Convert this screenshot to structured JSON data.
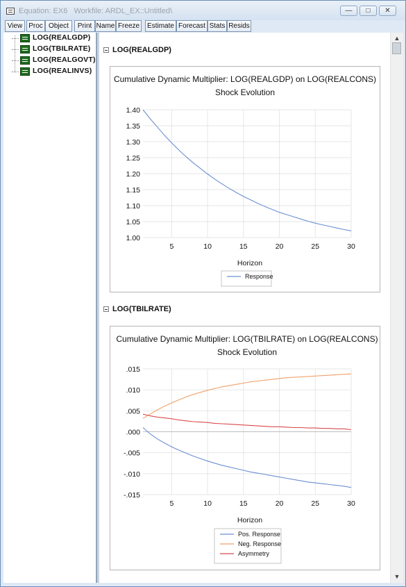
{
  "window": {
    "title": "Equation: EX6   Workfile: ARDL_EX::Untitled\\",
    "controls": [
      "minimize",
      "maximize",
      "close"
    ]
  },
  "toolbar": {
    "buttons": [
      "View",
      "Proc",
      "Object",
      "Print",
      "Name",
      "Freeze",
      "Estimate",
      "Forecast",
      "Stats",
      "Resids"
    ]
  },
  "tree": {
    "items": [
      "LOG(REALGDP)",
      "LOG(TBILRATE)",
      "LOG(REALGOVT)",
      "LOG(REALINVS)"
    ]
  },
  "sections": [
    {
      "header": "LOG(REALGDP)"
    },
    {
      "header": "LOG(TBILRATE)"
    }
  ],
  "chart_data": [
    {
      "type": "line",
      "title": "Cumulative Dynamic Multiplier: LOG(REALGDP) on LOG(REALCONS)",
      "subtitle": "Shock Evolution",
      "xlabel": "Horizon",
      "ylabel": "",
      "xlim": [
        1,
        30
      ],
      "ylim": [
        1.0,
        1.4
      ],
      "x_ticks": [
        5,
        10,
        15,
        20,
        25,
        30
      ],
      "y_ticks": [
        1.0,
        1.05,
        1.1,
        1.15,
        1.2,
        1.25,
        1.3,
        1.35,
        1.4
      ],
      "y_tick_labels": [
        "1.00",
        "1.05",
        "1.10",
        "1.15",
        "1.20",
        "1.25",
        "1.30",
        "1.35",
        "1.40"
      ],
      "grid": true,
      "legend": "bottom",
      "x": [
        1,
        2,
        3,
        4,
        5,
        6,
        7,
        8,
        9,
        10,
        11,
        12,
        13,
        14,
        15,
        16,
        17,
        18,
        19,
        20,
        21,
        22,
        23,
        24,
        25,
        26,
        27,
        28,
        29,
        30
      ],
      "series": [
        {
          "name": "Response",
          "color": "#6b8fd2",
          "values": [
            1.4,
            1.372,
            1.346,
            1.32,
            1.296,
            1.274,
            1.253,
            1.234,
            1.216,
            1.199,
            1.183,
            1.168,
            1.154,
            1.141,
            1.129,
            1.118,
            1.107,
            1.097,
            1.088,
            1.079,
            1.072,
            1.065,
            1.058,
            1.051,
            1.045,
            1.04,
            1.035,
            1.03,
            1.025,
            1.021
          ]
        }
      ]
    },
    {
      "type": "line",
      "title": "Cumulative Dynamic Multiplier: LOG(TBILRATE) on LOG(REALCONS)",
      "subtitle": "Shock Evolution",
      "xlabel": "Horizon",
      "ylabel": "",
      "xlim": [
        1,
        30
      ],
      "ylim": [
        -0.015,
        0.015
      ],
      "x_ticks": [
        5,
        10,
        15,
        20,
        25,
        30
      ],
      "y_ticks": [
        0.015,
        0.01,
        0.005,
        0,
        -0.005,
        -0.01,
        -0.015
      ],
      "y_tick_labels": [
        ".015",
        ".010",
        ".005",
        ".000",
        "-.005",
        "-.010",
        "-.015"
      ],
      "grid": true,
      "zero_line": true,
      "legend": "bottom",
      "x": [
        1,
        2,
        3,
        4,
        5,
        6,
        7,
        8,
        9,
        10,
        11,
        12,
        13,
        14,
        15,
        16,
        17,
        18,
        19,
        20,
        21,
        22,
        23,
        24,
        25,
        26,
        27,
        28,
        29,
        30
      ],
      "series": [
        {
          "name": "Pos. Response",
          "color": "#6b8fd2",
          "values": [
            0.001,
            -0.0005,
            -0.0017,
            -0.0027,
            -0.0036,
            -0.0044,
            -0.0051,
            -0.0058,
            -0.0064,
            -0.007,
            -0.0075,
            -0.008,
            -0.0084,
            -0.0088,
            -0.0092,
            -0.0096,
            -0.0099,
            -0.0102,
            -0.0105,
            -0.0108,
            -0.0111,
            -0.0114,
            -0.0117,
            -0.012,
            -0.0122,
            -0.0124,
            -0.0126,
            -0.0128,
            -0.013,
            -0.0133
          ]
        },
        {
          "name": "Neg. Response",
          "color": "#f0a06a",
          "values": [
            0.0032,
            0.0042,
            0.0052,
            0.0061,
            0.0069,
            0.0076,
            0.0083,
            0.0089,
            0.0094,
            0.0099,
            0.0103,
            0.0107,
            0.011,
            0.0113,
            0.0116,
            0.0119,
            0.0121,
            0.0123,
            0.0125,
            0.0127,
            0.0129,
            0.013,
            0.0131,
            0.0132,
            0.0133,
            0.0134,
            0.0135,
            0.0136,
            0.0137,
            0.0138
          ]
        },
        {
          "name": "Asymmetry",
          "color": "#d84a4a",
          "values": [
            0.0042,
            0.0038,
            0.0035,
            0.0033,
            0.0031,
            0.0028,
            0.0026,
            0.0024,
            0.0023,
            0.0022,
            0.002,
            0.0019,
            0.0018,
            0.0017,
            0.0016,
            0.0015,
            0.0014,
            0.0013,
            0.0012,
            0.0012,
            0.0011,
            0.001,
            0.001,
            0.0009,
            0.0009,
            0.0008,
            0.0008,
            0.0007,
            0.0007,
            0.0005
          ]
        }
      ]
    }
  ]
}
